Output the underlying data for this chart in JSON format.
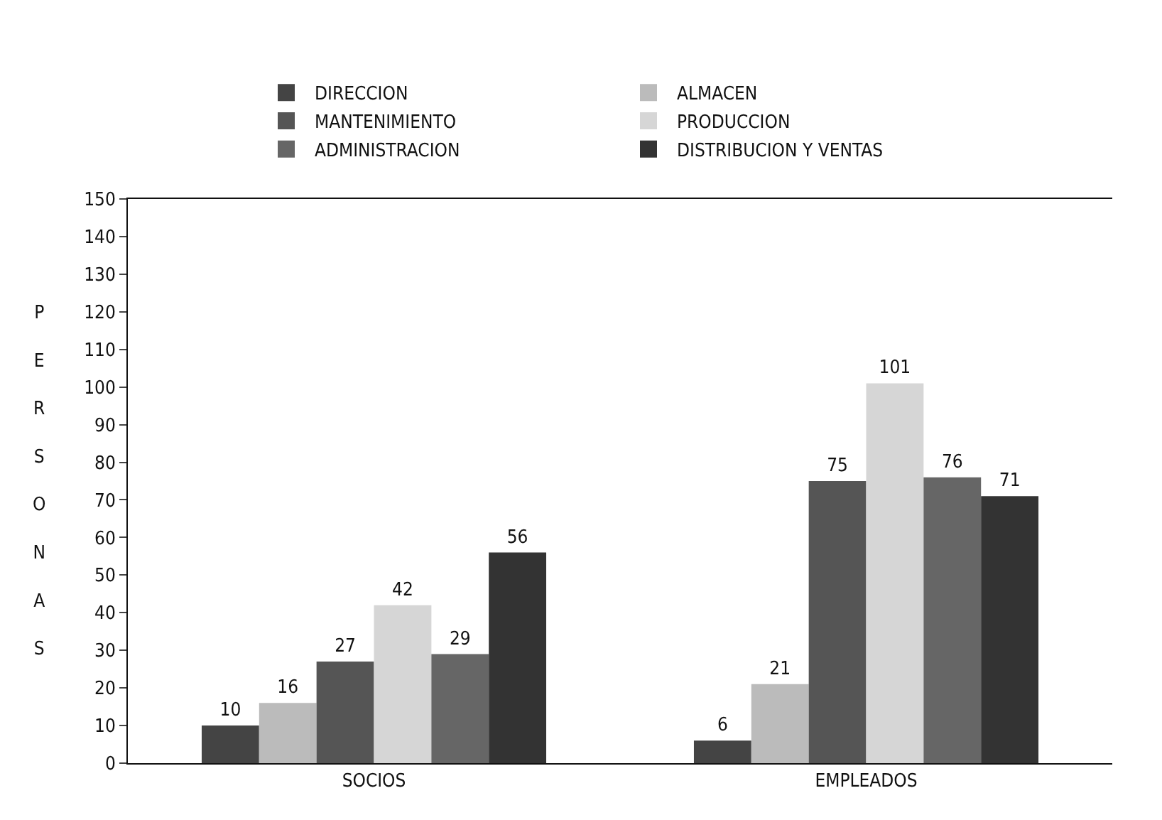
{
  "chart_data": {
    "type": "bar",
    "ylabel": "PERSONAS",
    "categories": [
      "SOCIOS",
      "EMPLEADOS"
    ],
    "series": [
      {
        "name": "DIRECCION",
        "color": "#444444",
        "values": [
          10,
          6
        ]
      },
      {
        "name": "ALMACEN",
        "color": "#bbbbbb",
        "values": [
          16,
          21
        ]
      },
      {
        "name": "MANTENIMIENTO",
        "color": "#555555",
        "values": [
          27,
          75
        ]
      },
      {
        "name": "PRODUCCION",
        "color": "#d6d6d6",
        "values": [
          42,
          101
        ]
      },
      {
        "name": "ADMINISTRACION",
        "color": "#666666",
        "values": [
          29,
          76
        ]
      },
      {
        "name": "DISTRIBUCION Y VENTAS",
        "color": "#333333",
        "values": [
          56,
          71
        ]
      }
    ],
    "ylim": [
      0,
      150
    ],
    "yticks": [
      0,
      10,
      20,
      30,
      40,
      50,
      60,
      70,
      80,
      90,
      100,
      110,
      120,
      130,
      140,
      150
    ],
    "data_labels": true,
    "grid": false,
    "legend": "top"
  }
}
